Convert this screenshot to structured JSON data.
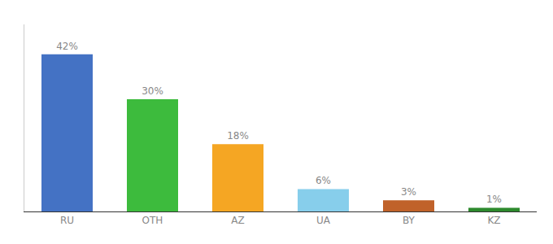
{
  "chart_data": {
    "type": "bar",
    "categories": [
      "RU",
      "OTH",
      "AZ",
      "UA",
      "BY",
      "KZ"
    ],
    "values": [
      42,
      30,
      18,
      6,
      3,
      1
    ],
    "value_labels": [
      "42%",
      "30%",
      "18%",
      "6%",
      "3%",
      "1%"
    ],
    "colors": [
      "#4472c4",
      "#3dbb3d",
      "#f5a623",
      "#87ceeb",
      "#c0622a",
      "#2d8a2d"
    ],
    "ylim": [
      0,
      50
    ],
    "data_labels": true,
    "grid": false,
    "tick_labels": "x"
  }
}
